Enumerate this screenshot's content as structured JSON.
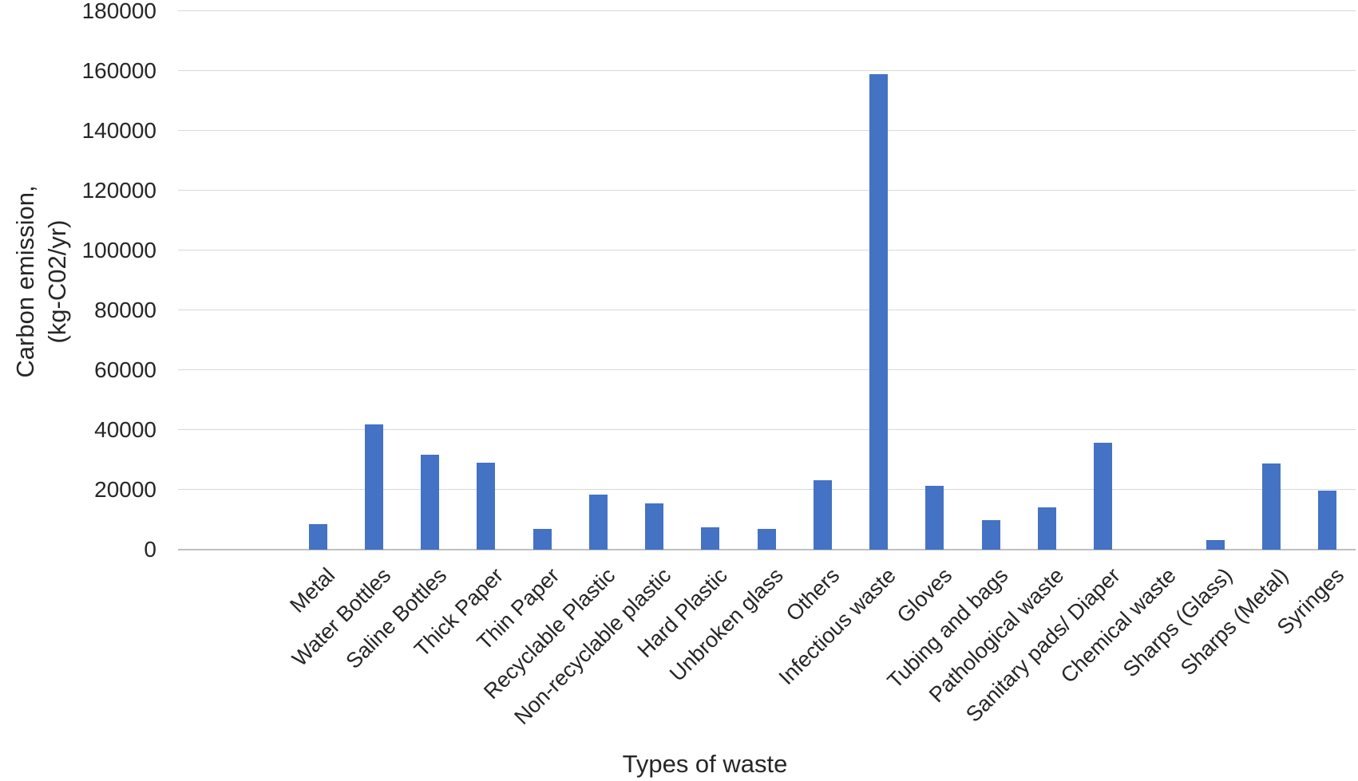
{
  "chart_data": {
    "type": "bar",
    "title": "",
    "xlabel": "Types of waste",
    "ylabel": "Carbon emission, (kg-C02/yr)",
    "ylabel_lines": [
      "Carbon emission,",
      "(kg-C02/yr)"
    ],
    "categories": [
      "Metal",
      "Water Bottles",
      "Saline Bottles",
      "Thick Paper",
      "Thin Paper",
      "Recyclable Plastic",
      "Non-recyclable plastic",
      "Hard Plastic",
      "Unbroken glass",
      "Others",
      "Infectious waste",
      "Gloves",
      "Tubing and bags",
      "Pathological waste",
      "Sanitary pads/ Diaper",
      "Chemical waste",
      "Sharps (Glass)",
      "Sharps (Metal)",
      "Syringes"
    ],
    "values": [
      8500,
      42000,
      31700,
      29000,
      7000,
      18400,
      15400,
      7400,
      7000,
      23300,
      159000,
      21300,
      10000,
      14100,
      35700,
      0,
      3100,
      28800,
      19700
    ],
    "ylim": [
      0,
      180000
    ],
    "ytick_step": 20000,
    "yticks": [
      "0",
      "20000",
      "40000",
      "60000",
      "80000",
      "100000",
      "120000",
      "140000",
      "160000",
      "180000"
    ],
    "grid": true,
    "legend_position": "none",
    "colors": {
      "bar": "#4472C4",
      "gridline": "#D9D9D9",
      "axis_line": "#BFBFBF",
      "text": "#262626"
    }
  }
}
